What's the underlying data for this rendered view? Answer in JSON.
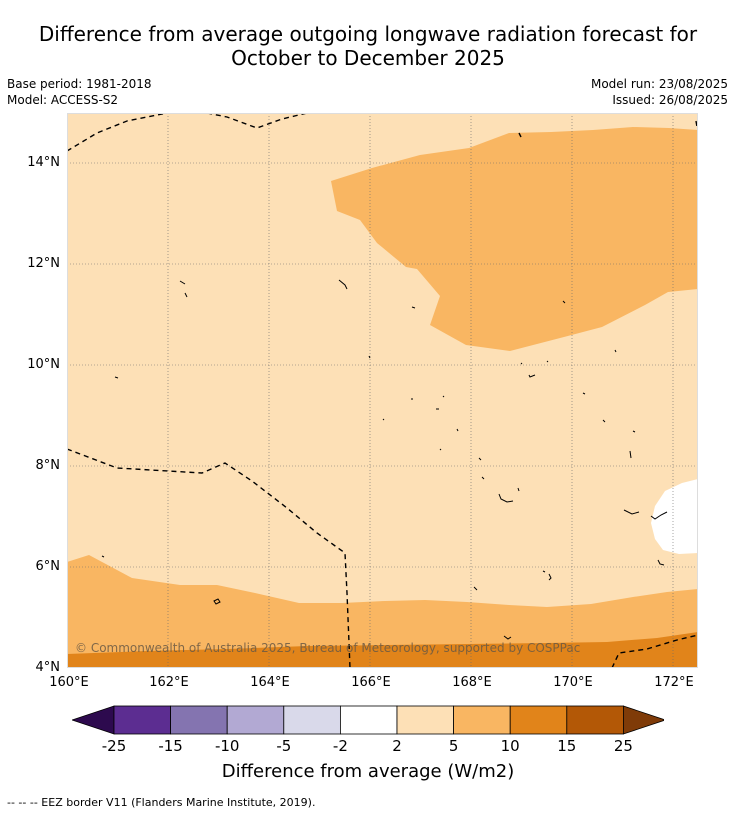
{
  "title_line1": "Difference from average outgoing longwave radiation forecast for",
  "title_line2": "October to December 2025",
  "base_period": "Base period: 1981-2018",
  "model": "Model: ACCESS-S2",
  "model_run": "Model run: 23/08/2025",
  "issued": "Issued: 26/08/2025",
  "copyright": "© Commonwealth of Australia 2025, Bureau of Meteorology, supported by COSPPac",
  "y_ticks": [
    "14°N",
    "12°N",
    "10°N",
    "8°N",
    "6°N",
    "4°N"
  ],
  "x_ticks": [
    "160°E",
    "162°E",
    "164°E",
    "166°E",
    "168°E",
    "170°E",
    "172°E"
  ],
  "colorbar": {
    "labels": [
      "-25",
      "-15",
      "-10",
      "-5",
      "-2",
      "2",
      "5",
      "10",
      "15",
      "25"
    ],
    "colors": [
      "#2d0a4e",
      "#5c2d91",
      "#8474b0",
      "#b2a9d3",
      "#d9d9ea",
      "#ffffff",
      "#fde0b6",
      "#f9b662",
      "#e1841a",
      "#b35806",
      "#7f3b08"
    ],
    "title": "Difference from average (W/m2)"
  },
  "legend_line": "--  --  -- EEZ border V11 (Flanders Marine Institute, 2019).",
  "chart_data": {
    "type": "heatmap",
    "variable": "Difference from average outgoing longwave radiation",
    "units": "W/m2",
    "lon_range": [
      160,
      172.5
    ],
    "lat_range": [
      4,
      15
    ],
    "levels": [
      -25,
      -15,
      -10,
      -5,
      -2,
      2,
      5,
      10,
      15,
      25
    ],
    "regions": [
      {
        "category": "2 to 5",
        "color": "#fde0b6",
        "extent": "background over most of domain"
      },
      {
        "category": "5 to 10",
        "color": "#f9b662",
        "extent": "north-east (approx 165.5-172.5E, 10.3-14.7N)"
      },
      {
        "category": "5 to 10",
        "color": "#f9b662",
        "extent": "southern band (approx 4.3-6.2N)"
      },
      {
        "category": "10 to 15",
        "color": "#e1841a",
        "extent": "southern edge (approx 4-4.8N)"
      },
      {
        "category": "-2 to 2",
        "color": "#ffffff",
        "extent": "small area near 171.5-172.5E, 6.2-7.7N"
      }
    ]
  }
}
